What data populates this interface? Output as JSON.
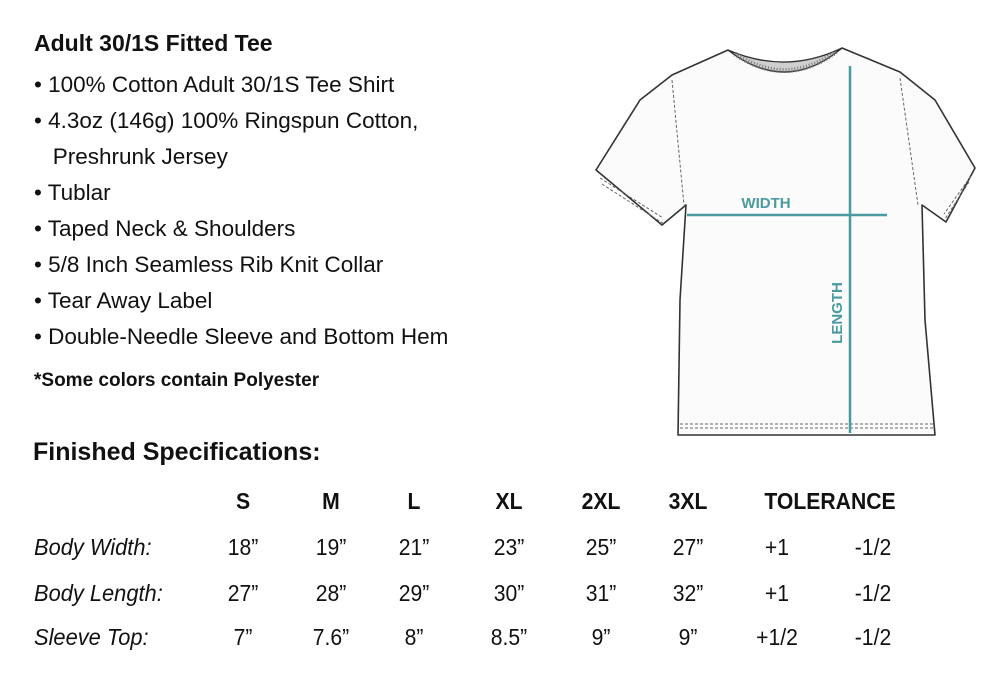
{
  "title": "Adult 30/1S Fitted Tee",
  "features": [
    "• 100% Cotton Adult 30/1S Tee Shirt",
    "• 4.3oz (146g) 100% Ringspun Cotton,",
    "   Preshrunk Jersey",
    "• Tublar",
    "• Taped Neck & Shoulders",
    "• 5/8 Inch Seamless Rib Knit Collar",
    "• Tear Away Label",
    "• Double-Needle Sleeve and Bottom Hem"
  ],
  "note": "*Some colors contain Polyester",
  "diagram": {
    "width_label": "WIDTH",
    "length_label": "LENGTH",
    "accent_color": "#4a9aa0"
  },
  "specs": {
    "title": "Finished Specifications:",
    "headers": [
      "S",
      "M",
      "L",
      "XL",
      "2XL",
      "3XL",
      "TOLERANCE"
    ],
    "rows": [
      {
        "label": "Body Width:",
        "values": [
          "18”",
          "19”",
          "21”",
          "23”",
          "25”",
          "27”"
        ],
        "tol_plus": "+1",
        "tol_minus": "-1/2"
      },
      {
        "label": "Body Length:",
        "values": [
          "27”",
          "28”",
          "29”",
          "30”",
          "31”",
          "32”"
        ],
        "tol_plus": "+1",
        "tol_minus": "-1/2"
      },
      {
        "label": "Sleeve Top:",
        "values": [
          "7”",
          "7.6”",
          "8”",
          "8.5”",
          "9”",
          "9”"
        ],
        "tol_plus": "+1/2",
        "tol_minus": "-1/2"
      }
    ]
  }
}
